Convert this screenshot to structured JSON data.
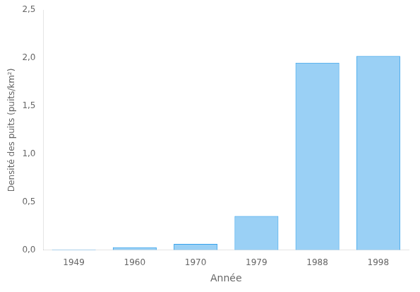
{
  "chart_data": {
    "type": "bar",
    "xlabel": "Année",
    "ylabel": "Densité des puits (puits/km²)",
    "categories": [
      "1949",
      "1960",
      "1970",
      "1979",
      "1988",
      "1998"
    ],
    "values": [
      0.005,
      0.03,
      0.065,
      0.355,
      1.95,
      2.02
    ],
    "ylim": [
      0,
      2.5
    ],
    "yticks": [
      {
        "value": 0.0,
        "label": "0,0"
      },
      {
        "value": 0.5,
        "label": "0,5"
      },
      {
        "value": 1.0,
        "label": "1,0"
      },
      {
        "value": 1.5,
        "label": "1,5"
      },
      {
        "value": 2.0,
        "label": "2,0"
      },
      {
        "value": 2.5,
        "label": "2,5"
      }
    ],
    "grid": false
  }
}
